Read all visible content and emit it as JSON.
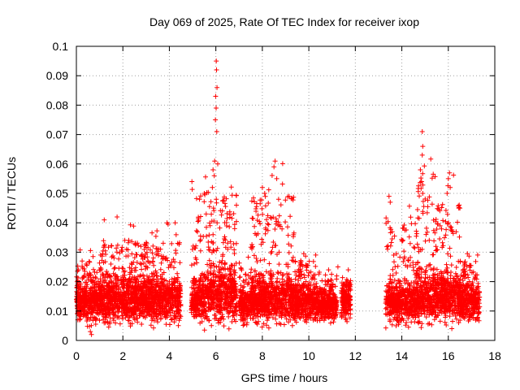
{
  "chart_data": {
    "type": "scatter",
    "title": "Day 069 of 2025, Rate Of TEC Index for receiver ixop",
    "xlabel": "GPS time / hours",
    "ylabel": "ROTI / TECUs",
    "xlim": [
      0,
      18
    ],
    "ylim": [
      0,
      0.1
    ],
    "xticks": [
      "0",
      "2",
      "4",
      "6",
      "8",
      "10",
      "12",
      "14",
      "16",
      "18"
    ],
    "yticks": [
      "0",
      "0.01",
      "0.02",
      "0.03",
      "0.04",
      "0.05",
      "0.06",
      "0.07",
      "0.08",
      "0.09",
      "0.1"
    ],
    "grid": true,
    "marker": "+",
    "color": "#ff0000",
    "series": [
      {
        "name": "ROTI",
        "segments": [
          {
            "x0": 0.0,
            "x1": 1.0,
            "base": 0.013,
            "spread": 0.007,
            "top": 0.032
          },
          {
            "x0": 1.0,
            "x1": 2.5,
            "base": 0.014,
            "spread": 0.008,
            "top": 0.041
          },
          {
            "x0": 2.5,
            "x1": 4.5,
            "base": 0.014,
            "spread": 0.008,
            "top": 0.04
          },
          {
            "x0": 4.95,
            "x1": 5.5,
            "base": 0.014,
            "spread": 0.008,
            "top": 0.054
          },
          {
            "x0": 5.5,
            "x1": 6.9,
            "base": 0.016,
            "spread": 0.01,
            "top": 0.061
          },
          {
            "x0": 7.0,
            "x1": 7.5,
            "base": 0.012,
            "spread": 0.006,
            "top": 0.03
          },
          {
            "x0": 7.5,
            "x1": 9.4,
            "base": 0.014,
            "spread": 0.008,
            "top": 0.061
          },
          {
            "x0": 9.4,
            "x1": 10.4,
            "base": 0.013,
            "spread": 0.007,
            "top": 0.032
          },
          {
            "x0": 10.4,
            "x1": 11.2,
            "base": 0.012,
            "spread": 0.006,
            "top": 0.024
          },
          {
            "x0": 11.4,
            "x1": 11.8,
            "base": 0.013,
            "spread": 0.006,
            "top": 0.024
          },
          {
            "x0": 13.3,
            "x1": 14.6,
            "base": 0.013,
            "spread": 0.007,
            "top": 0.049
          },
          {
            "x0": 14.6,
            "x1": 15.5,
            "base": 0.015,
            "spread": 0.009,
            "top": 0.071
          },
          {
            "x0": 15.5,
            "x1": 16.5,
            "base": 0.015,
            "spread": 0.008,
            "top": 0.057
          },
          {
            "x0": 16.5,
            "x1": 17.35,
            "base": 0.013,
            "spread": 0.007,
            "top": 0.032
          }
        ],
        "outliers": [
          [
            6.02,
            0.095
          ],
          [
            6.03,
            0.092
          ],
          [
            6.05,
            0.086
          ],
          [
            5.99,
            0.083
          ],
          [
            6.01,
            0.079
          ],
          [
            5.98,
            0.075
          ],
          [
            6.04,
            0.071
          ],
          [
            5.95,
            0.061
          ],
          [
            6.08,
            0.06
          ],
          [
            5.88,
            0.058
          ],
          [
            5.93,
            0.056
          ],
          [
            5.85,
            0.052
          ],
          [
            6.02,
            0.048
          ],
          [
            5.9,
            0.045
          ],
          [
            4.97,
            0.054
          ],
          [
            5.3,
            0.048
          ],
          [
            5.5,
            0.05
          ],
          [
            8.55,
            0.061
          ],
          [
            8.5,
            0.059
          ],
          [
            8.62,
            0.055
          ],
          [
            8.0,
            0.052
          ],
          [
            8.1,
            0.05
          ],
          [
            9.15,
            0.049
          ],
          [
            8.7,
            0.048
          ],
          [
            14.88,
            0.071
          ],
          [
            14.9,
            0.066
          ],
          [
            14.88,
            0.063
          ],
          [
            14.8,
            0.058
          ],
          [
            14.85,
            0.054
          ],
          [
            14.9,
            0.05
          ],
          [
            13.45,
            0.049
          ],
          [
            13.5,
            0.047
          ],
          [
            16.05,
            0.057
          ],
          [
            16.0,
            0.055
          ],
          [
            16.08,
            0.052
          ],
          [
            15.95,
            0.05
          ],
          [
            16.45,
            0.045
          ],
          [
            16.5,
            0.045
          ],
          [
            1.2,
            0.041
          ],
          [
            1.75,
            0.042
          ],
          [
            3.9,
            0.04
          ],
          [
            4.25,
            0.04
          ],
          [
            10.85,
            0.024
          ],
          [
            11.25,
            0.025
          ],
          [
            11.7,
            0.024
          ],
          [
            0.6,
            0.003
          ],
          [
            0.65,
            0.002
          ],
          [
            16.15,
            0.004
          ]
        ]
      }
    ]
  }
}
